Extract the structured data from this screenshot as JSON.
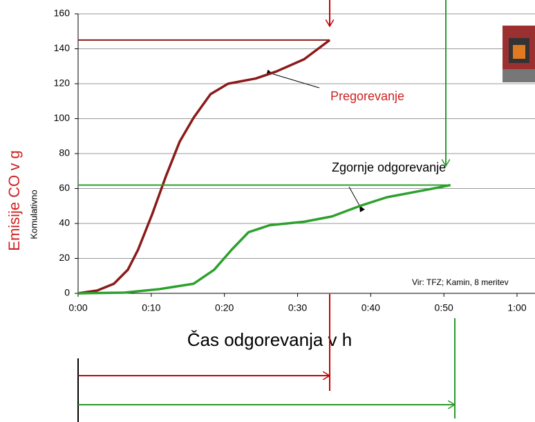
{
  "chart_data": {
    "type": "line",
    "y_label": "Emisije CO v g",
    "y_sublabel": "Komulativno",
    "x_label": "Čas odgorevanja v h",
    "source": "Vir: TFZ; Kamin, 8 meritev",
    "xlim": [
      0,
      60
    ],
    "ylim": [
      0,
      160
    ],
    "xticks": [
      {
        "value": 0,
        "label": "0:00"
      },
      {
        "value": 10,
        "label": "0:10"
      },
      {
        "value": 20,
        "label": "0:20"
      },
      {
        "value": 30,
        "label": "0:30"
      },
      {
        "value": 40,
        "label": "0:40"
      },
      {
        "value": 50,
        "label": "0:50"
      },
      {
        "value": 60,
        "label": "1:00"
      }
    ],
    "yticks": [
      0,
      20,
      40,
      60,
      80,
      100,
      120,
      140,
      160
    ],
    "grid": true,
    "series": [
      {
        "name": "Pregorevanje",
        "color": "#8b1a1a",
        "x": [
          0,
          2.6,
          4.9,
          6.8,
          8.2,
          10.1,
          12,
          13.9,
          15.8,
          18.1,
          20.5,
          24.3,
          27.1,
          30.9,
          34.4
        ],
        "values": [
          0,
          1.6,
          5.5,
          13.5,
          25,
          45,
          67,
          87,
          100.6,
          114,
          120,
          123,
          127,
          134,
          145
        ]
      },
      {
        "name": "Zgornje odgorevanje",
        "color": "#2ca02c",
        "x": [
          0,
          6.3,
          11.1,
          15.8,
          18.6,
          21,
          23.3,
          26.2,
          30.9,
          34.7,
          38.5,
          42.2,
          46,
          49.8,
          50.9
        ],
        "values": [
          0,
          0.4,
          2.4,
          5.5,
          13.5,
          25,
          35,
          39,
          41,
          44,
          50,
          55,
          58,
          61,
          62
        ]
      }
    ]
  }
}
